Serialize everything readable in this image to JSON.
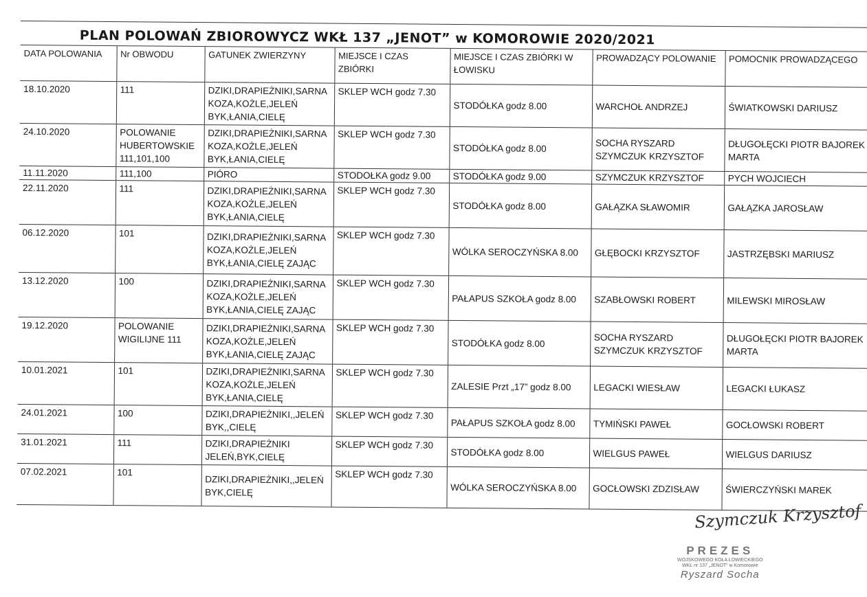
{
  "title": "PLAN  POLOWAŃ  ZBIOROWYCZ WKŁ 137 „JENOT”  w KOMOROWIE 2020/2021",
  "columns": [
    "DATA POLOWANIA",
    "Nr OBWODU",
    "GATUNEK ZWIERZYNY",
    "MIEJSCE I CZAS ZBIÓRKI",
    "MIEJSCE I CZAS ZBIÓRKI W ŁOWISKU",
    "PROWADZĄCY POLOWANIE",
    "POMOCNIK PROWADZĄCEGO"
  ],
  "rows": [
    [
      "18.10.2020",
      "111",
      "DZIKI,DRAPIEŻNIKI,SARNA KOZA,KOŻLE,JELEŃ BYK,ŁANIA,CIELĘ",
      "SKLEP WCH godz 7.30",
      "STODÓŁKA godz 8.00",
      "WARCHOŁ ANDRZEJ",
      "ŚWIATKOWSKI DARIUSZ"
    ],
    [
      "24.10.2020",
      "POLOWANIE HUBERTOWSKIE 111,101,100",
      "DZIKI,DRAPIEŻNIKI,SARNA KOZA,KOŻLE,JELEŃ BYK,ŁANIA,CIELĘ",
      "SKLEP WCH godz 7.30",
      "STODÓŁKA godz 8.00",
      "SOCHA RYSZARD SZYMCZUK KRZYSZTOF",
      "DŁUGOŁĘCKI PIOTR BAJOREK MARTA"
    ],
    [
      "11.11.2020",
      "111,100",
      "PIÓRO",
      "STODOŁKA godz 9.00",
      "STODÓŁKA godz 9.00",
      "SZYMCZUK KRZYSZTOF",
      "PYCH WOJCIECH"
    ],
    [
      "22.11.2020",
      "111",
      "DZIKI,DRAPIEŻNIKI,SARNA KOZA,KOŻLE,JELEŃ BYK,ŁANIA,CIELĘ",
      "SKLEP WCH godz 7.30",
      "STODÓŁKA godz 8.00",
      "GAŁĄZKA SŁAWOMIR",
      "GAŁĄZKA JAROSŁAW"
    ],
    [
      "06.12.2020",
      "101",
      "DZIKI,DRAPIEŻNIKI,SARNA KOZA,KOŻLE,JELEŃ BYK,ŁANIA,CIELĘ ZAJĄC",
      "SKLEP WCH godz 7.30",
      "WÓLKA SEROCZYŃSKA 8.00",
      "GŁĘBOCKI KRZYSZTOF",
      "JASTRZĘBSKI MARIUSZ"
    ],
    [
      "13.12.2020",
      "100",
      "DZIKI,DRAPIEŻNIKI,SARNA KOZA,KOŻLE,JELEŃ BYK,ŁANIA,CIELĘ ZAJĄC",
      "SKLEP WCH godz 7.30",
      "PAŁAPUS SZKOŁA godz 8.00",
      "SZABŁOWSKI ROBERT",
      "MILEWSKI MIROSŁAW"
    ],
    [
      "19.12.2020",
      "POLOWANIE WIGILIJNE 111",
      "DZIKI,DRAPIEŻNIKI,SARNA KOZA,KOŻLE,JELEŃ BYK,ŁANIA,CIELĘ ZAJĄC",
      "SKLEP WCH godz 7.30",
      "STODÓŁKA godz 8.00",
      "SOCHA RYSZARD SZYMCZUK KRZYSZTOF",
      "DŁUGOŁĘCKI PIOTR BAJOREK MARTA"
    ],
    [
      "10.01.2021",
      "101",
      "DZIKI,DRAPIEŻNIKI,SARNA KOZA,KOŻLE,JELEŃ BYK,ŁANIA,CIELĘ",
      "SKLEP WCH godz 7.30",
      "ZALESIE Przt „17” godz 8.00",
      "LEGACKI WIESŁAW",
      "LEGACKI ŁUKASZ"
    ],
    [
      "24.01.2021",
      "100",
      "DZIKI,DRAPIEŻNIKI,,JELEŃ BYK,,CIELĘ",
      "SKLEP WCH godz 7.30",
      "PAŁAPUS SZKOŁA godz 8.00",
      "TYMIŃSKI PAWEŁ",
      "GOCŁOWSKI ROBERT"
    ],
    [
      "31.01.2021",
      "111",
      "DZIKI,DRAPIEŻNIKI JELEŃ,BYK,CIELĘ",
      "SKLEP WCH godz 7.30",
      "STODÓŁKA godz 8.00",
      "WIELGUS PAWEŁ",
      "WIELGUS DARIUSZ"
    ],
    [
      "07.02.2021",
      "101",
      "DZIKI,DRAPIEŻNIKI,,JELEŃ BYK,CIELĘ",
      "SKLEP WCH godz 7.30",
      "WÓLKA SEROCZYŃSKA 8.00",
      "GOCŁOWSKI ZDZISŁAW",
      "ŚWIERCZYŃSKI MAREK"
    ]
  ],
  "signature": "Szymczuk Krzysztof",
  "stamp": {
    "title": "PREZES",
    "line1": "WOJSKOWEGO KOŁA ŁOWIECKIEGO",
    "line2": "WKŁ nr 137 „JENOT” w Komorowie",
    "name": "Ryszard Socha"
  }
}
